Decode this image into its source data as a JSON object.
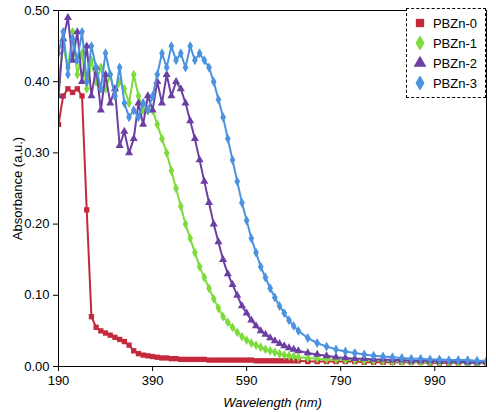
{
  "chart_data": {
    "type": "scatter",
    "x_label": "Wavelength (nm)",
    "y_label": "Absorbance (a.u.)",
    "xlim": [
      190,
      1100
    ],
    "xticks": [
      190,
      390,
      590,
      790,
      990
    ],
    "ylim": [
      0,
      0.5
    ],
    "yticks": [
      0,
      0.1,
      0.2,
      0.3,
      0.4,
      0.5
    ],
    "grid": false,
    "legend": "top-right",
    "x": [
      190,
      200,
      210,
      220,
      230,
      240,
      250,
      260,
      270,
      280,
      290,
      300,
      310,
      320,
      330,
      340,
      350,
      360,
      370,
      380,
      390,
      400,
      410,
      420,
      430,
      440,
      450,
      460,
      470,
      480,
      490,
      500,
      510,
      520,
      530,
      540,
      550,
      560,
      570,
      580,
      590,
      600,
      610,
      620,
      630,
      640,
      650,
      660,
      670,
      680,
      690,
      700,
      720,
      740,
      760,
      780,
      800,
      820,
      840,
      860,
      880,
      900,
      920,
      940,
      960,
      980,
      1000,
      1020,
      1040,
      1060,
      1080,
      1100
    ],
    "series": [
      {
        "name": "PBZn-0",
        "color": "#c42a3b",
        "marker": "square",
        "values": [
          0.34,
          0.38,
          0.39,
          0.385,
          0.39,
          0.38,
          0.22,
          0.07,
          0.055,
          0.05,
          0.047,
          0.044,
          0.041,
          0.038,
          0.035,
          0.03,
          0.022,
          0.018,
          0.016,
          0.015,
          0.014,
          0.013,
          0.012,
          0.012,
          0.011,
          0.011,
          0.01,
          0.01,
          0.01,
          0.01,
          0.01,
          0.01,
          0.009,
          0.009,
          0.009,
          0.009,
          0.009,
          0.009,
          0.009,
          0.009,
          0.009,
          0.009,
          0.008,
          0.008,
          0.008,
          0.008,
          0.008,
          0.008,
          0.008,
          0.008,
          0.008,
          0.008,
          0.007,
          0.007,
          0.007,
          0.007,
          0.007,
          0.007,
          0.006,
          0.006,
          0.006,
          0.006,
          0.006,
          0.006,
          0.006,
          0.005,
          0.005,
          0.005,
          0.005,
          0.005,
          0.005,
          0.005
        ]
      },
      {
        "name": "PBZn-1",
        "color": "#7ddc3c",
        "marker": "diamond",
        "values": [
          0.4,
          0.45,
          0.42,
          0.47,
          0.41,
          0.44,
          0.39,
          0.43,
          0.4,
          0.42,
          0.39,
          0.41,
          0.38,
          0.4,
          0.39,
          0.37,
          0.41,
          0.38,
          0.36,
          0.36,
          0.36,
          0.34,
          0.32,
          0.3,
          0.275,
          0.25,
          0.225,
          0.2,
          0.18,
          0.16,
          0.14,
          0.125,
          0.11,
          0.095,
          0.082,
          0.07,
          0.062,
          0.055,
          0.048,
          0.042,
          0.037,
          0.033,
          0.03,
          0.027,
          0.024,
          0.022,
          0.02,
          0.018,
          0.016,
          0.015,
          0.014,
          0.013,
          0.012,
          0.011,
          0.01,
          0.01,
          0.009,
          0.009,
          0.008,
          0.008,
          0.008,
          0.007,
          0.007,
          0.007,
          0.006,
          0.006,
          0.006,
          0.006,
          0.005,
          0.005,
          0.005,
          0.005
        ]
      },
      {
        "name": "PBZn-2",
        "color": "#6c3fa3",
        "marker": "triangle",
        "values": [
          0.38,
          0.46,
          0.49,
          0.43,
          0.47,
          0.4,
          0.45,
          0.38,
          0.42,
          0.36,
          0.41,
          0.37,
          0.39,
          0.31,
          0.33,
          0.3,
          0.32,
          0.37,
          0.34,
          0.38,
          0.36,
          0.4,
          0.37,
          0.41,
          0.38,
          0.4,
          0.39,
          0.37,
          0.345,
          0.32,
          0.29,
          0.26,
          0.23,
          0.2,
          0.175,
          0.15,
          0.13,
          0.115,
          0.1,
          0.085,
          0.075,
          0.065,
          0.057,
          0.05,
          0.045,
          0.04,
          0.036,
          0.032,
          0.029,
          0.026,
          0.024,
          0.022,
          0.019,
          0.017,
          0.015,
          0.013,
          0.012,
          0.011,
          0.011,
          0.01,
          0.01,
          0.009,
          0.009,
          0.008,
          0.008,
          0.008,
          0.007,
          0.007,
          0.007,
          0.006,
          0.006,
          0.006
        ]
      },
      {
        "name": "PBZn-3",
        "color": "#4b93e0",
        "marker": "diamond",
        "values": [
          0.44,
          0.47,
          0.41,
          0.46,
          0.43,
          0.47,
          0.4,
          0.45,
          0.42,
          0.39,
          0.44,
          0.41,
          0.38,
          0.42,
          0.37,
          0.35,
          0.36,
          0.35,
          0.37,
          0.36,
          0.38,
          0.41,
          0.44,
          0.42,
          0.45,
          0.43,
          0.44,
          0.42,
          0.45,
          0.43,
          0.44,
          0.43,
          0.42,
          0.4,
          0.375,
          0.35,
          0.32,
          0.29,
          0.26,
          0.23,
          0.205,
          0.18,
          0.16,
          0.14,
          0.125,
          0.11,
          0.097,
          0.085,
          0.075,
          0.065,
          0.057,
          0.05,
          0.04,
          0.033,
          0.028,
          0.024,
          0.021,
          0.019,
          0.017,
          0.015,
          0.014,
          0.013,
          0.012,
          0.011,
          0.011,
          0.01,
          0.01,
          0.009,
          0.009,
          0.009,
          0.008,
          0.008
        ]
      }
    ]
  }
}
